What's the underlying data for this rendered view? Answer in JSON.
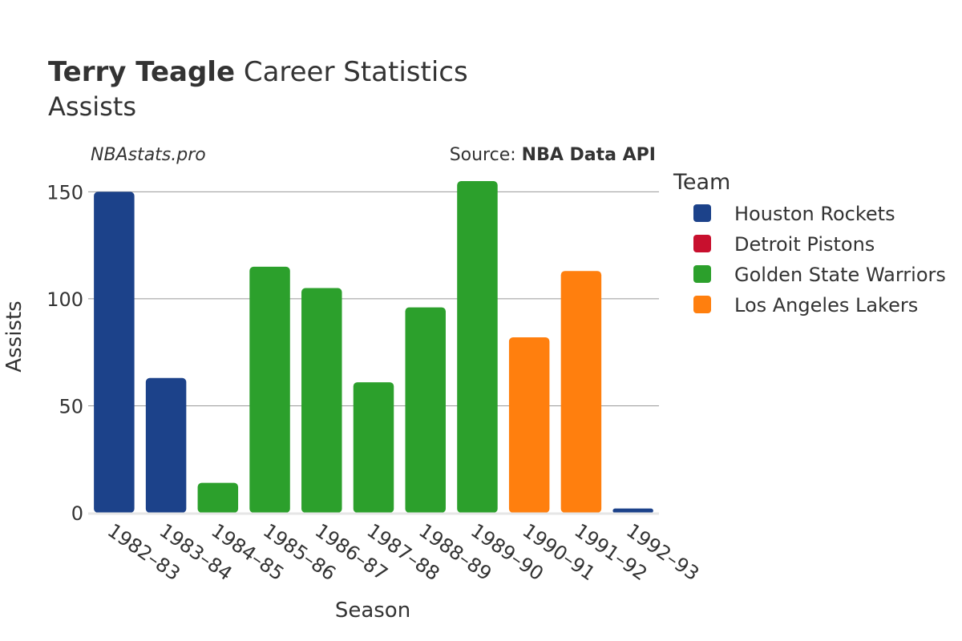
{
  "header": {
    "title_bold": "Terry Teagle",
    "title_rest": " Career Statistics",
    "subtitle": "Assists"
  },
  "watermark": "NBAstats.pro",
  "source": {
    "label": "Source: ",
    "name": "NBA Data API"
  },
  "legend": {
    "title": "Team",
    "placement": "right",
    "items": [
      {
        "name": "Houston Rockets",
        "color": "#1c428a"
      },
      {
        "name": "Detroit Pistons",
        "color": "#c8102e"
      },
      {
        "name": "Golden State Warriors",
        "color": "#2ca02c"
      },
      {
        "name": "Los Angeles Lakers",
        "color": "#ff7f0e"
      }
    ]
  },
  "chart_data": {
    "type": "bar",
    "xlabel": "Season",
    "ylabel": "Assists",
    "ylim": [
      0,
      158
    ],
    "yticks": [
      0,
      50,
      100,
      150
    ],
    "grid": true,
    "categories": [
      "1982–83",
      "1983–84",
      "1984–85",
      "1985–86",
      "1986–87",
      "1987–88",
      "1988–89",
      "1989–90",
      "1990–91",
      "1991–92",
      "1992–93"
    ],
    "bars": [
      {
        "season": "1982–83",
        "team": "Houston Rockets",
        "value": 150
      },
      {
        "season": "1983–84",
        "team": "Houston Rockets",
        "value": 63
      },
      {
        "season": "1984–85",
        "team": "Golden State Warriors",
        "value": 14
      },
      {
        "season": "1985–86",
        "team": "Golden State Warriors",
        "value": 115
      },
      {
        "season": "1986–87",
        "team": "Golden State Warriors",
        "value": 105
      },
      {
        "season": "1987–88",
        "team": "Golden State Warriors",
        "value": 61
      },
      {
        "season": "1988–89",
        "team": "Golden State Warriors",
        "value": 96
      },
      {
        "season": "1989–90",
        "team": "Golden State Warriors",
        "value": 155
      },
      {
        "season": "1990–91",
        "team": "Los Angeles Lakers",
        "value": 82
      },
      {
        "season": "1991–92",
        "team": "Los Angeles Lakers",
        "value": 113
      },
      {
        "season": "1992–93",
        "team": "Houston Rockets",
        "value": 2
      }
    ]
  }
}
